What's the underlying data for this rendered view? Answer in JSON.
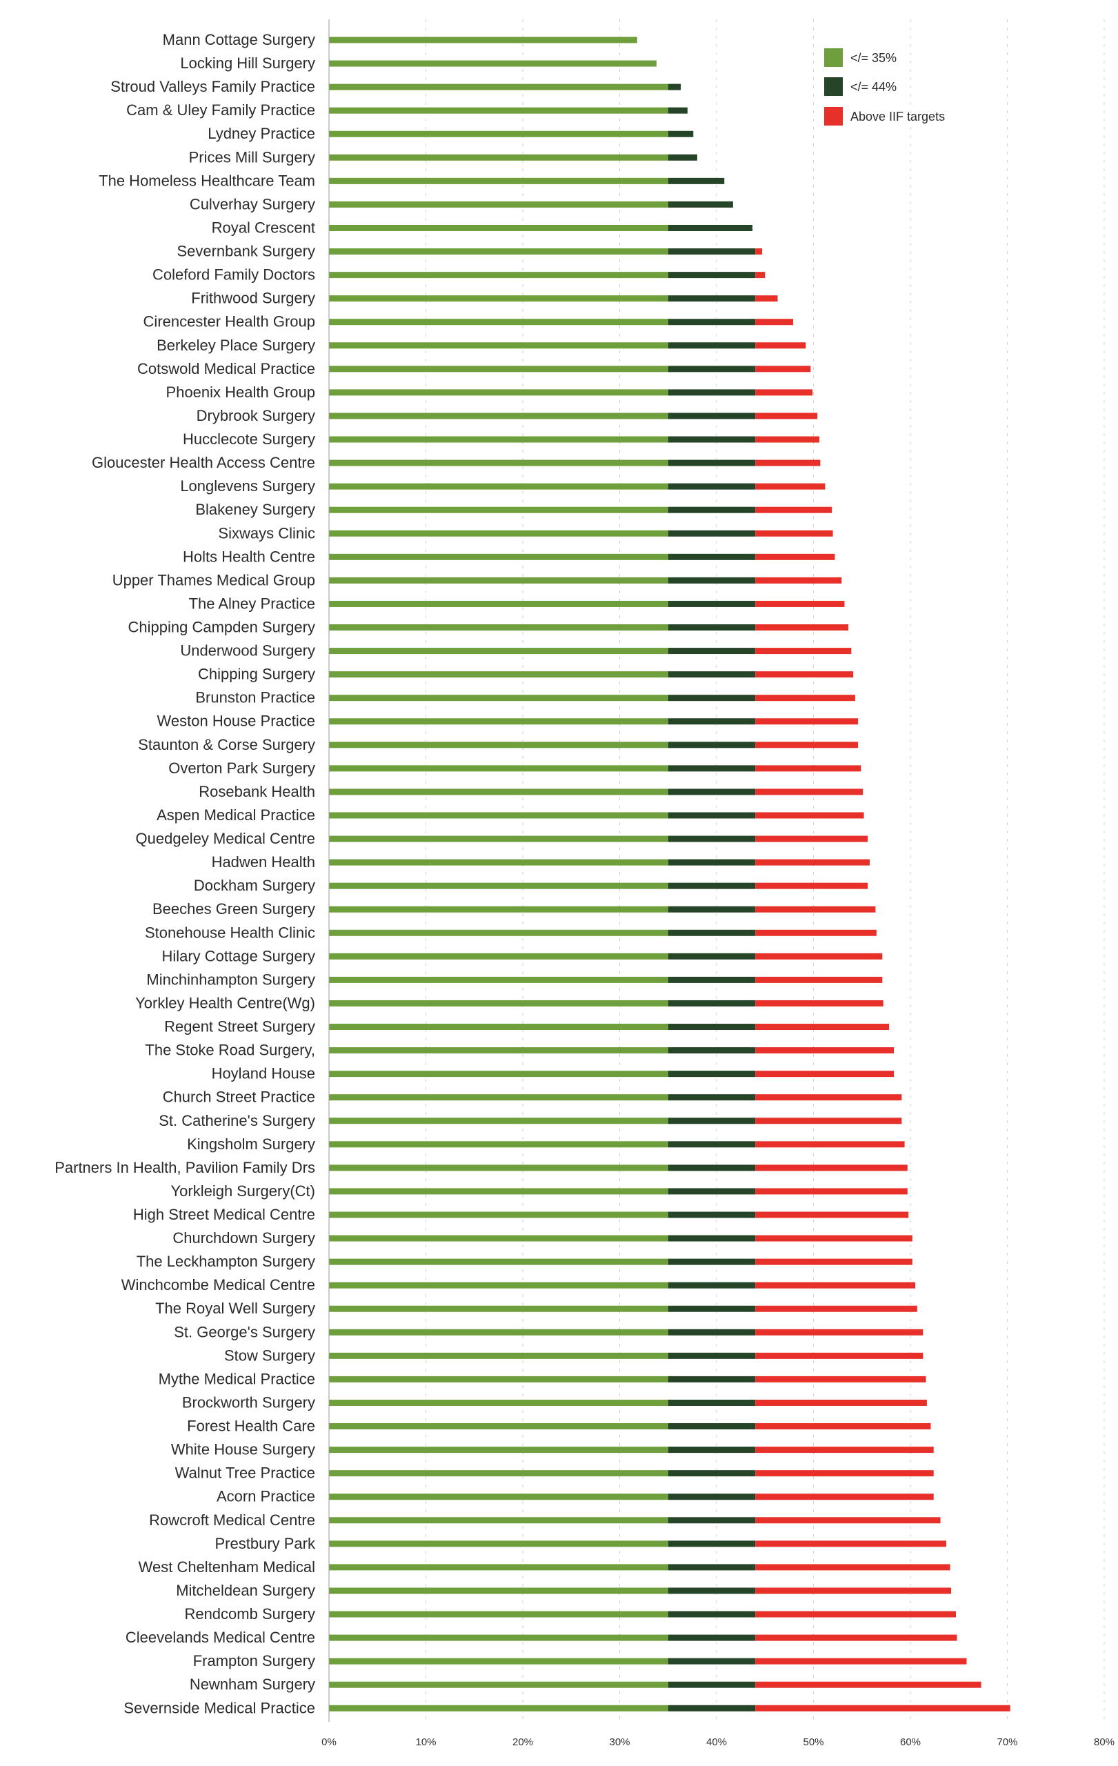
{
  "chart_data": {
    "type": "bar",
    "orientation": "horizontal",
    "stacked": true,
    "title": "",
    "xlabel": "",
    "ylabel": "",
    "xlim": [
      0,
      80
    ],
    "x_ticks": [
      "0%",
      "10%",
      "20%",
      "30%",
      "40%",
      "50%",
      "60%",
      "70%",
      "80%"
    ],
    "x_tick_values": [
      0,
      10,
      20,
      30,
      40,
      50,
      60,
      70,
      80
    ],
    "grid": "vertical dashed",
    "legend_position": "top-right",
    "thresholds": [
      35,
      44
    ],
    "legend": [
      {
        "name": "</= 35%",
        "color": "#6f9e3c"
      },
      {
        "name": "</= 44%",
        "color": "#264428"
      },
      {
        "name": "Above IIF targets",
        "color": "#e8302a"
      }
    ],
    "categories": [
      "Mann Cottage Surgery",
      "Locking Hill Surgery",
      "Stroud Valleys Family Practice",
      "Cam & Uley Family Practice",
      "Lydney Practice",
      "Prices Mill Surgery",
      "The Homeless Healthcare Team",
      "Culverhay Surgery",
      "Royal Crescent",
      "Severnbank Surgery",
      "Coleford Family Doctors",
      "Frithwood Surgery",
      "Cirencester Health Group",
      "Berkeley Place Surgery",
      "Cotswold Medical Practice",
      "Phoenix Health Group",
      "Drybrook Surgery",
      "Hucclecote Surgery",
      "Gloucester Health Access Centre",
      "Longlevens Surgery",
      "Blakeney Surgery",
      "Sixways Clinic",
      "Holts Health Centre",
      "Upper Thames Medical Group",
      "The Alney Practice",
      "Chipping Campden Surgery",
      "Underwood Surgery",
      "Chipping Surgery",
      "Brunston Practice",
      "Weston House Practice",
      "Staunton & Corse Surgery",
      "Overton Park Surgery",
      "Rosebank Health",
      "Aspen Medical Practice",
      "Quedgeley Medical Centre",
      "Hadwen Health",
      "Dockham Surgery",
      "Beeches Green Surgery",
      "Stonehouse Health Clinic",
      "Hilary Cottage Surgery",
      "Minchinhampton Surgery",
      "Yorkley Health Centre(Wg)",
      "Regent Street Surgery",
      "The Stoke Road Surgery,",
      "Hoyland House",
      "Church Street Practice",
      "St. Catherine's Surgery",
      "Kingsholm Surgery",
      "Partners In Health, Pavilion Family Drs",
      "Yorkleigh Surgery(Ct)",
      "High Street Medical Centre",
      "Churchdown Surgery",
      "The Leckhampton Surgery",
      "Winchcombe Medical Centre",
      "The Royal Well Surgery",
      "St. George's Surgery",
      "Stow Surgery",
      "Mythe Medical Practice",
      "Brockworth Surgery",
      "Forest Health Care",
      "White House Surgery",
      "Walnut Tree Practice",
      "Acorn Practice",
      "Rowcroft Medical Centre",
      "Prestbury Park",
      "West Cheltenham Medical",
      "Mitcheldean Surgery",
      "Rendcomb Surgery",
      "Cleevelands Medical Centre",
      "Frampton Surgery",
      "Newnham Surgery",
      "Severnside Medical Practice"
    ],
    "values": [
      31.8,
      33.8,
      36.3,
      37.0,
      37.6,
      38.0,
      40.8,
      41.7,
      43.7,
      44.7,
      45.0,
      46.3,
      47.9,
      49.2,
      49.7,
      49.9,
      50.4,
      50.6,
      50.7,
      51.2,
      51.9,
      52.0,
      52.2,
      52.9,
      53.2,
      53.6,
      53.9,
      54.1,
      54.3,
      54.6,
      54.6,
      54.9,
      55.1,
      55.2,
      55.6,
      55.8,
      55.6,
      56.4,
      56.5,
      57.1,
      57.1,
      57.2,
      57.8,
      58.3,
      58.3,
      59.1,
      59.1,
      59.4,
      59.7,
      59.7,
      59.8,
      60.2,
      60.2,
      60.5,
      60.7,
      61.3,
      61.3,
      61.6,
      61.7,
      62.1,
      62.4,
      62.4,
      62.4,
      63.1,
      63.7,
      64.1,
      64.2,
      64.7,
      64.8,
      65.8,
      67.3,
      70.3
    ]
  }
}
